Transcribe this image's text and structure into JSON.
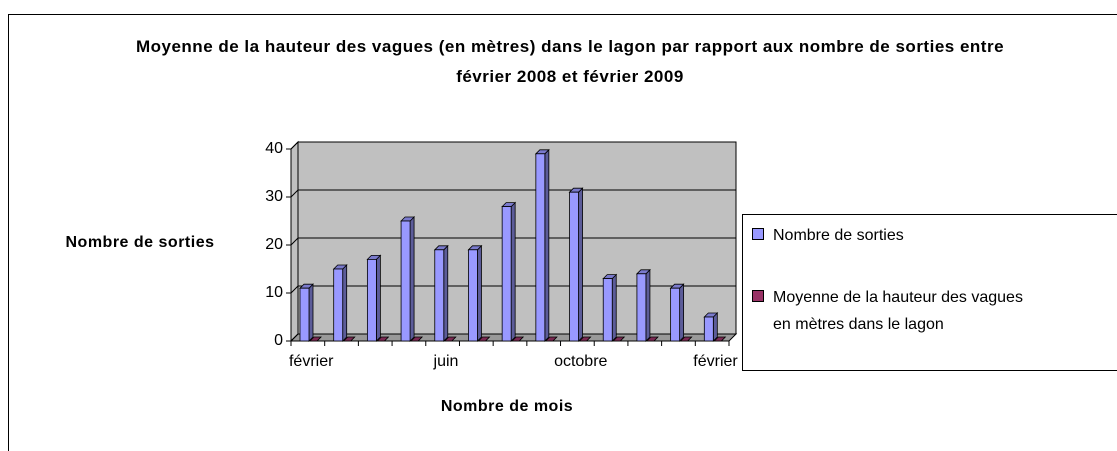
{
  "chart_data": {
    "type": "bar3d",
    "title": "Moyenne de la hauteur des vagues (en mètres) dans le lagon par rapport aux nombre de sorties entre février 2008 et février 2009",
    "x_label": "Nombre de mois",
    "y_label": "Nombre de sorties",
    "categories": [
      "février",
      null,
      null,
      null,
      "juin",
      null,
      null,
      null,
      "octobre",
      null,
      null,
      null,
      "février"
    ],
    "series": [
      {
        "name": "Nombre de sorties",
        "color": "#9999ff",
        "values": [
          11,
          15,
          17,
          25,
          19,
          19,
          28,
          39,
          31,
          13,
          14,
          11,
          5
        ]
      },
      {
        "name": "Moyenne de la hauteur des vagues en mètres dans le lagon",
        "color": "#993366",
        "values": [
          0,
          0,
          0,
          0,
          0,
          0,
          0,
          0,
          0,
          0,
          0,
          0,
          0
        ]
      }
    ],
    "ylim": [
      0,
      40
    ],
    "yticks": [
      0,
      10,
      20,
      30,
      40
    ],
    "grid": true,
    "legend": "right",
    "wall_color": "#c0c0c0"
  }
}
